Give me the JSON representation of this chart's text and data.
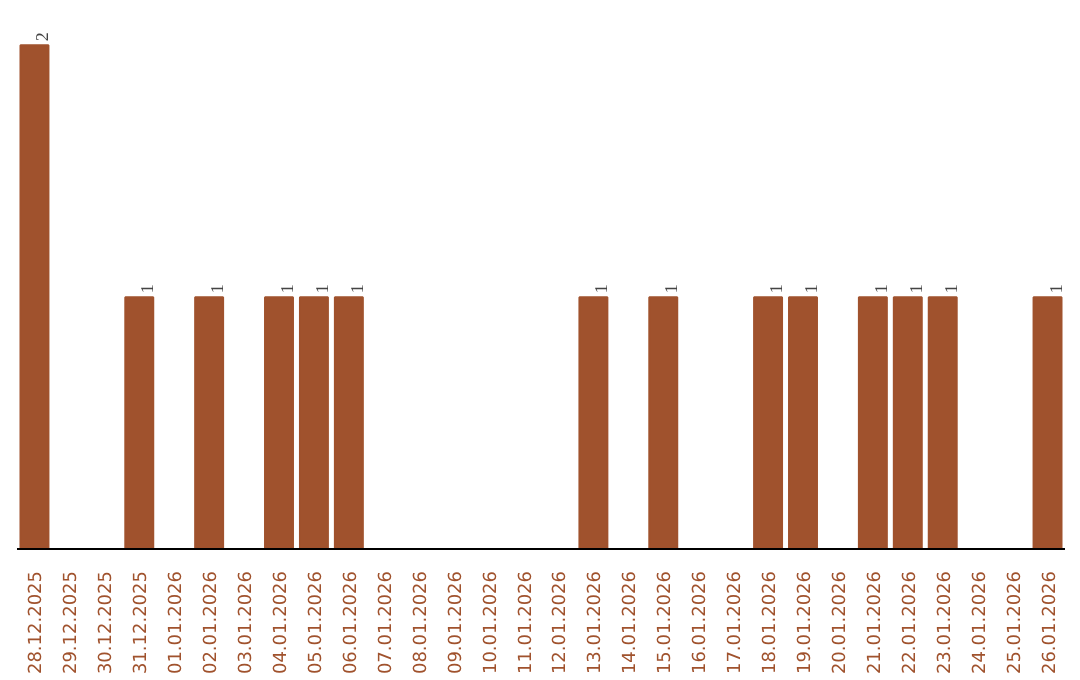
{
  "chart_data": {
    "type": "bar",
    "categories": [
      "28.12.2025",
      "29.12.2025",
      "30.12.2025",
      "31.12.2025",
      "01.01.2026",
      "02.01.2026",
      "03.01.2026",
      "04.01.2026",
      "05.01.2026",
      "06.01.2026",
      "07.01.2026",
      "08.01.2026",
      "09.01.2026",
      "10.01.2026",
      "11.01.2026",
      "12.01.2026",
      "13.01.2026",
      "14.01.2026",
      "15.01.2026",
      "16.01.2026",
      "17.01.2026",
      "18.01.2026",
      "19.01.2026",
      "20.01.2026",
      "21.01.2026",
      "22.01.2026",
      "23.01.2026",
      "24.01.2026",
      "25.01.2026",
      "26.01.2026"
    ],
    "values": [
      2,
      0,
      0,
      1,
      0,
      1,
      0,
      1,
      1,
      1,
      0,
      0,
      0,
      0,
      0,
      0,
      1,
      0,
      1,
      0,
      0,
      1,
      1,
      0,
      1,
      1,
      1,
      0,
      0,
      1
    ],
    "value_labels": [
      "2",
      null,
      null,
      "1",
      null,
      "1",
      null,
      "1",
      "1",
      "1",
      null,
      null,
      null,
      null,
      null,
      null,
      "1",
      null,
      "1",
      null,
      null,
      "1",
      "1",
      null,
      "1",
      "1",
      "1",
      null,
      null,
      "1"
    ],
    "color": "#a0522d"
  }
}
